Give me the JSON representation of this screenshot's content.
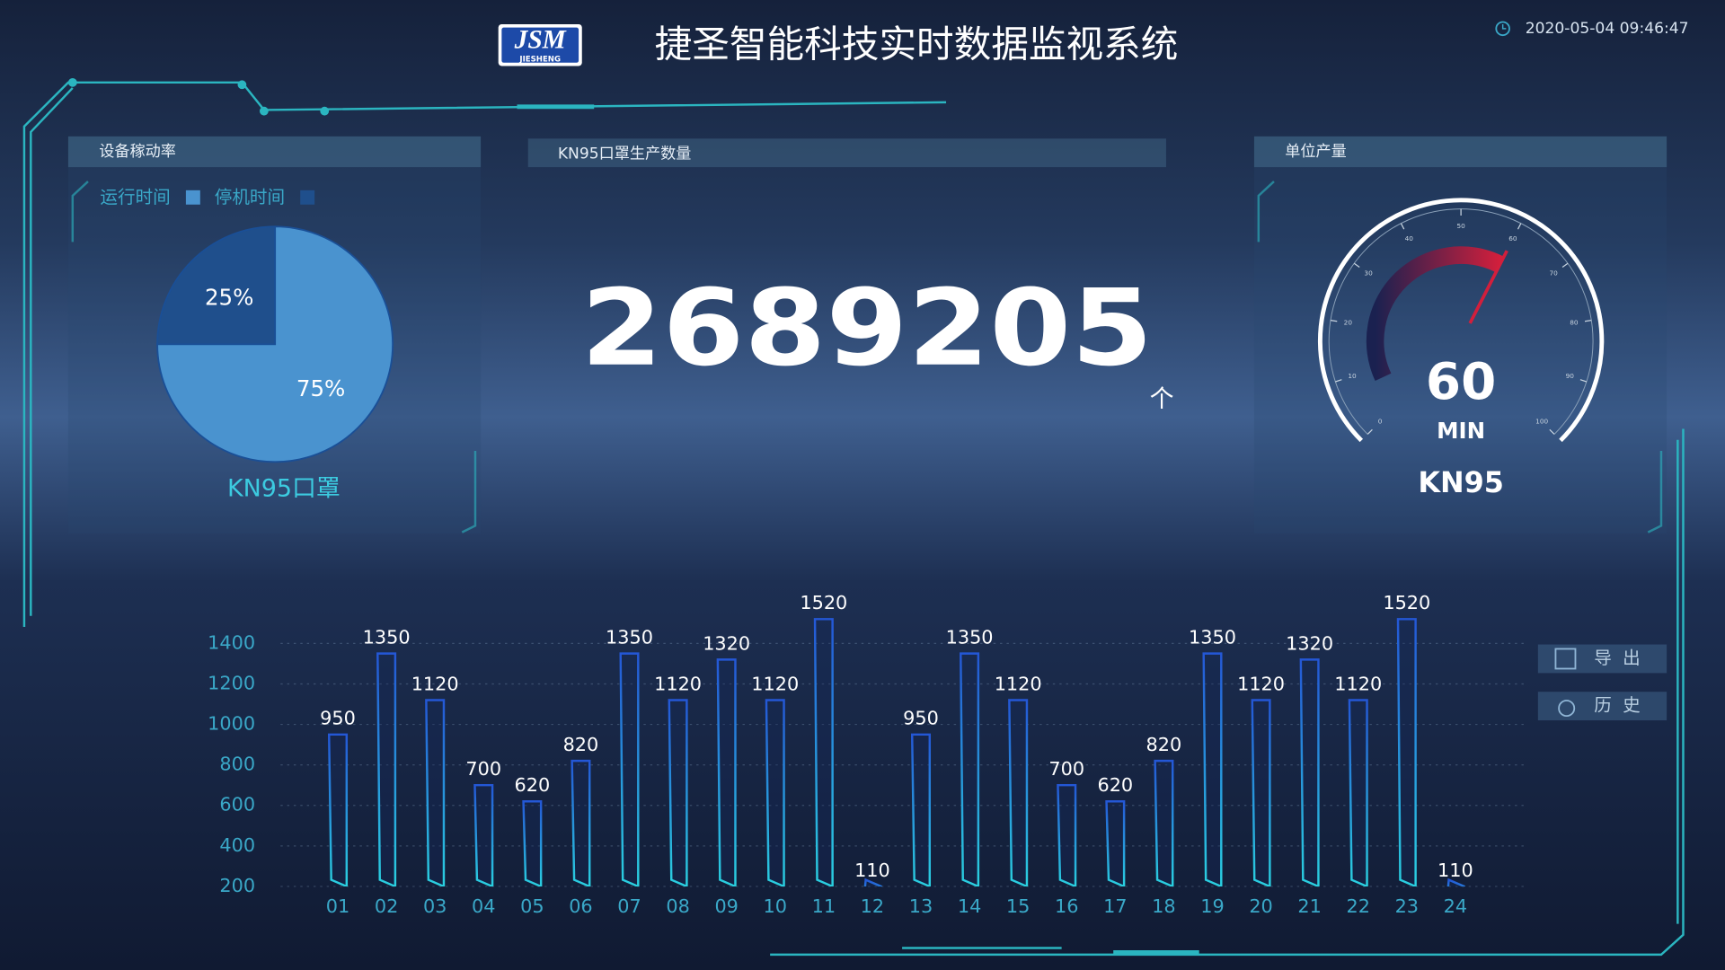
{
  "header": {
    "logo": "JSM",
    "logo_sub": "JIESHENG",
    "title": "捷圣智能科技实时数据监视系统",
    "datetime": "2020-05-04 09:46:47"
  },
  "panels": [
    "设备稼动率",
    "KN95口罩生产数量",
    "单位产量"
  ],
  "counter": {
    "value": "2689205",
    "unit": "个"
  },
  "buttons": [
    "导出",
    "历史"
  ],
  "chart_data": [
    {
      "type": "pie",
      "subtitle": "KN95口罩",
      "categories": [
        "运行时间",
        "停机时间"
      ],
      "values": [
        75,
        25
      ],
      "value_labels": [
        "75%",
        "25%"
      ],
      "colors": [
        "#4a93cf",
        "#1f4f8c"
      ],
      "legend": "top-left"
    },
    {
      "type": "gauge",
      "value": 60,
      "unit": "MIN",
      "label": "KN95",
      "range": [
        0,
        100
      ],
      "ticks": [
        0,
        10,
        20,
        30,
        40,
        50,
        60,
        70,
        80,
        90,
        100
      ],
      "color": "#d21f3c"
    },
    {
      "type": "bar",
      "categories": [
        "01",
        "02",
        "03",
        "04",
        "05",
        "06",
        "07",
        "08",
        "09",
        "10",
        "11",
        "12",
        "13",
        "14",
        "15",
        "16",
        "17",
        "18",
        "19",
        "20",
        "21",
        "22",
        "23",
        "24"
      ],
      "values": [
        950,
        1350,
        1120,
        700,
        620,
        820,
        1350,
        1120,
        1320,
        1120,
        1520,
        110,
        950,
        1350,
        1120,
        700,
        620,
        820,
        1350,
        1120,
        1320,
        1120,
        1520,
        110
      ],
      "color": "#2a7fd8",
      "ylim": [
        200,
        1600
      ],
      "yticks": [
        200,
        400,
        600,
        800,
        1000,
        1200,
        1400
      ],
      "grid": true
    }
  ]
}
